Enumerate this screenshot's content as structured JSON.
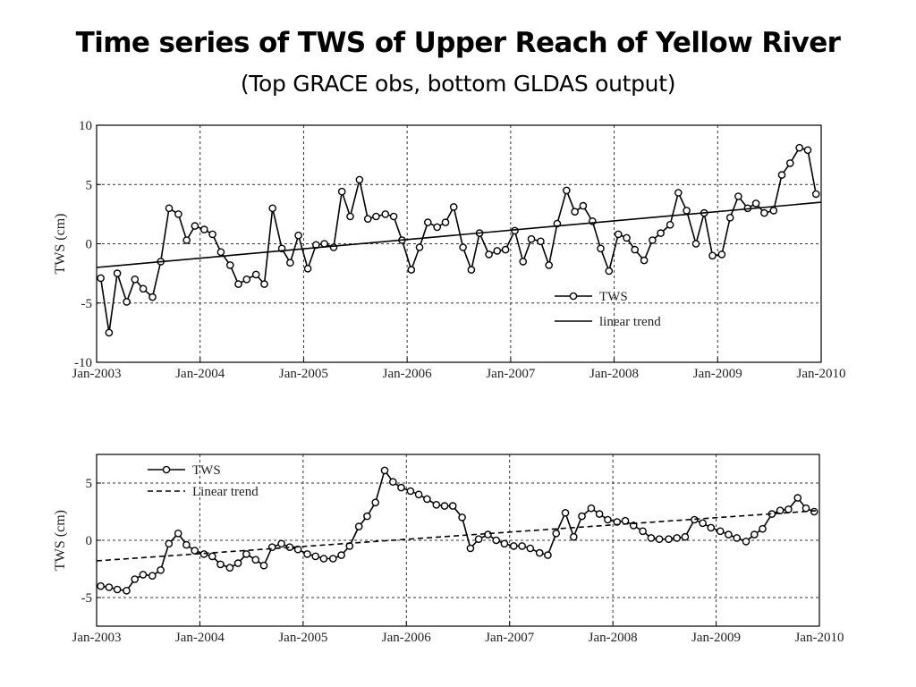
{
  "slide": {
    "title": "Time series of TWS of Upper Reach of Yellow River",
    "subtitle": "(Top GRACE obs, bottom GLDAS output)"
  },
  "chart_data": [
    {
      "type": "line",
      "source": "GRACE obs",
      "ylabel": "TWS (cm)",
      "xlabel": "",
      "x_ticks": [
        "Jan-2003",
        "Jan-2004",
        "Jan-2005",
        "Jan-2006",
        "Jan-2007",
        "Jan-2008",
        "Jan-2009",
        "Jan-2010"
      ],
      "xlim": [
        2003.0,
        2010.0
      ],
      "y_ticks": [
        10,
        5,
        0,
        -5,
        -10
      ],
      "ylim": [
        -10,
        10
      ],
      "grid": true,
      "legend_position": "bottom-right",
      "series": [
        {
          "name": "TWS",
          "style": "line-circle-markers",
          "x": [
            2003.04,
            2003.12,
            2003.2,
            2003.29,
            2003.37,
            2003.45,
            2003.54,
            2003.62,
            2003.7,
            2003.79,
            2003.87,
            2003.95,
            2004.04,
            2004.12,
            2004.2,
            2004.29,
            2004.37,
            2004.45,
            2004.54,
            2004.62,
            2004.7,
            2004.79,
            2004.87,
            2004.95,
            2005.04,
            2005.12,
            2005.2,
            2005.29,
            2005.37,
            2005.45,
            2005.54,
            2005.62,
            2005.7,
            2005.79,
            2005.87,
            2005.95,
            2006.04,
            2006.12,
            2006.2,
            2006.29,
            2006.37,
            2006.45,
            2006.54,
            2006.62,
            2006.7,
            2006.79,
            2006.87,
            2006.95,
            2007.04,
            2007.12,
            2007.2,
            2007.29,
            2007.37,
            2007.45,
            2007.54,
            2007.62,
            2007.7,
            2007.79,
            2007.87,
            2007.95,
            2008.04,
            2008.12,
            2008.2,
            2008.29,
            2008.37,
            2008.45,
            2008.54,
            2008.62,
            2008.7,
            2008.79,
            2008.87,
            2008.95,
            2009.04,
            2009.12,
            2009.2,
            2009.29,
            2009.37,
            2009.45,
            2009.54,
            2009.62,
            2009.7,
            2009.79,
            2009.87,
            2009.95
          ],
          "values": [
            -2.9,
            -7.5,
            -2.5,
            -4.9,
            -3.0,
            -3.8,
            -4.5,
            -1.5,
            3.0,
            2.5,
            0.3,
            1.5,
            1.2,
            0.8,
            -0.7,
            -1.8,
            -3.4,
            -3.0,
            -2.6,
            -3.4,
            3.0,
            -0.4,
            -1.6,
            0.7,
            -2.1,
            -0.1,
            0.0,
            -0.3,
            4.4,
            2.3,
            5.4,
            2.1,
            2.3,
            2.5,
            2.3,
            0.3,
            -2.2,
            -0.3,
            1.8,
            1.4,
            1.8,
            3.1,
            -0.3,
            -2.2,
            0.9,
            -0.9,
            -0.6,
            -0.5,
            1.1,
            -1.5,
            0.4,
            0.2,
            -1.8,
            1.7,
            4.5,
            2.7,
            3.2,
            1.9,
            -0.4,
            -2.3,
            0.8,
            0.5,
            -0.5,
            -1.4,
            0.3,
            0.9,
            1.6,
            4.3,
            2.8,
            0.0,
            2.6,
            -1.0,
            -0.9,
            2.2,
            4.0,
            3.0,
            3.4,
            2.6,
            2.8,
            5.8,
            6.8,
            8.1,
            7.9,
            4.2
          ]
        },
        {
          "name": "linear trend",
          "style": "solid",
          "x": [
            2003.0,
            2010.0
          ],
          "values": [
            -2.0,
            3.5
          ]
        }
      ]
    },
    {
      "type": "line",
      "source": "GLDAS output",
      "ylabel": "TWS (cm)",
      "xlabel": "",
      "x_ticks": [
        "Jan-2003",
        "Jan-2004",
        "Jan-2005",
        "Jan-2006",
        "Jan-2007",
        "Jan-2008",
        "Jan-2009",
        "Jan-2010"
      ],
      "xlim": [
        2003.0,
        2010.0
      ],
      "y_ticks": [
        5,
        0,
        -5
      ],
      "ylim": [
        -7.5,
        7.5
      ],
      "grid": true,
      "legend_position": "top-left",
      "series": [
        {
          "name": "TWS",
          "style": "line-circle-markers",
          "x": [
            2003.04,
            2003.12,
            2003.2,
            2003.29,
            2003.37,
            2003.45,
            2003.54,
            2003.62,
            2003.7,
            2003.79,
            2003.87,
            2003.95,
            2004.04,
            2004.12,
            2004.2,
            2004.29,
            2004.37,
            2004.45,
            2004.54,
            2004.62,
            2004.7,
            2004.79,
            2004.87,
            2004.95,
            2005.04,
            2005.12,
            2005.2,
            2005.29,
            2005.37,
            2005.45,
            2005.54,
            2005.62,
            2005.7,
            2005.79,
            2005.87,
            2005.95,
            2006.04,
            2006.12,
            2006.2,
            2006.29,
            2006.37,
            2006.45,
            2006.54,
            2006.62,
            2006.7,
            2006.79,
            2006.87,
            2006.95,
            2007.04,
            2007.12,
            2007.2,
            2007.29,
            2007.37,
            2007.45,
            2007.54,
            2007.62,
            2007.7,
            2007.79,
            2007.87,
            2007.95,
            2008.04,
            2008.12,
            2008.2,
            2008.29,
            2008.37,
            2008.45,
            2008.54,
            2008.62,
            2008.7,
            2008.79,
            2008.87,
            2008.95,
            2009.04,
            2009.12,
            2009.2,
            2009.29,
            2009.37,
            2009.45,
            2009.54,
            2009.62,
            2009.7,
            2009.79,
            2009.87,
            2009.95
          ],
          "values": [
            -4.0,
            -4.1,
            -4.3,
            -4.4,
            -3.4,
            -3.0,
            -3.1,
            -2.6,
            -0.3,
            0.6,
            -0.4,
            -0.9,
            -1.2,
            -1.4,
            -2.1,
            -2.4,
            -2.0,
            -1.2,
            -1.7,
            -2.2,
            -0.6,
            -0.3,
            -0.6,
            -0.8,
            -1.2,
            -1.4,
            -1.6,
            -1.6,
            -1.3,
            -0.5,
            1.2,
            2.1,
            3.3,
            6.1,
            5.1,
            4.6,
            4.3,
            4.0,
            3.6,
            3.1,
            3.0,
            3.0,
            2.0,
            -0.7,
            0.1,
            0.5,
            0.0,
            -0.3,
            -0.5,
            -0.5,
            -0.7,
            -1.1,
            -1.3,
            0.6,
            2.4,
            0.3,
            2.1,
            2.8,
            2.3,
            1.8,
            1.6,
            1.7,
            1.3,
            0.8,
            0.2,
            0.1,
            0.1,
            0.2,
            0.3,
            1.8,
            1.5,
            1.1,
            0.8,
            0.5,
            0.2,
            -0.1,
            0.5,
            1.0,
            2.3,
            2.6,
            2.7,
            3.7,
            2.8,
            2.5
          ]
        },
        {
          "name": "Linear trend",
          "style": "dashed",
          "x": [
            2003.0,
            2010.0
          ],
          "values": [
            -1.8,
            2.6
          ]
        }
      ]
    }
  ]
}
